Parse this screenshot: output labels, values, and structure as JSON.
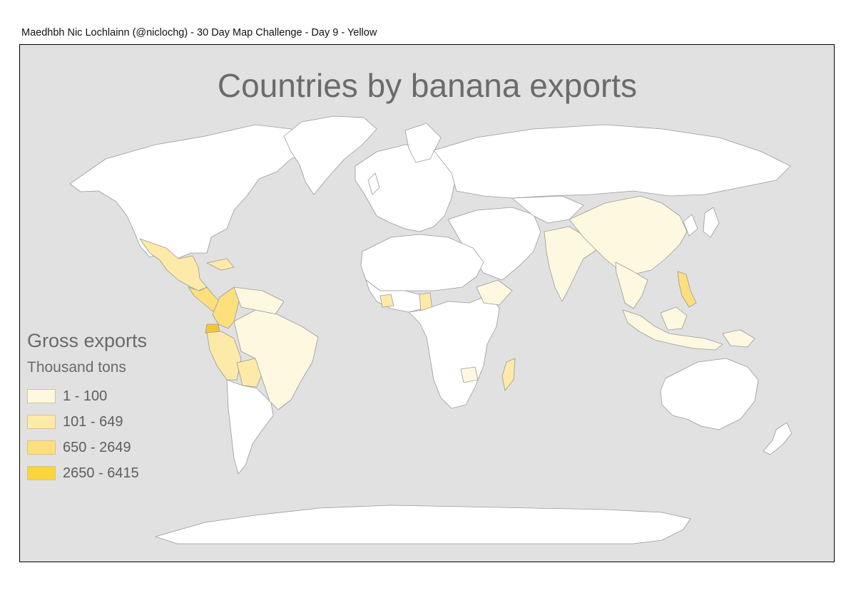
{
  "credit": "Maedhbh Nic Lochlainn (@niclochg) - 30 Day Map Challenge - Day 9 - Yellow",
  "title": "Countries by banana exports",
  "legend": {
    "title": "Gross exports",
    "subtitle": "Thousand tons",
    "items": [
      {
        "label": "1 - 100",
        "color": "#fff8e1"
      },
      {
        "label": "101 - 649",
        "color": "#feeaa8"
      },
      {
        "label": "650 - 2649",
        "color": "#fddf7e"
      },
      {
        "label": "2650 - 6415",
        "color": "#fcd43b"
      }
    ]
  },
  "colors": {
    "ocean": "#e1e1e1",
    "land": "#ffffff",
    "border": "#9a9a9a",
    "top_tier": "#f6c53a"
  },
  "map_class_assignments": {
    "1 - 100": [
      "China",
      "India",
      "Brazil",
      "Ethiopia",
      "Zimbabwe",
      "Venezuela",
      "Guyana",
      "Suriname",
      "Thailand",
      "Laos",
      "Malaysia",
      "Indonesia",
      "Papua New Guinea",
      "Cameroon neighbours"
    ],
    "101 - 649": [
      "Mexico",
      "Honduras",
      "Nicaragua",
      "Peru",
      "Bolivia",
      "Côte d'Ivoire",
      "Cameroon",
      "Dominican Republic",
      "Madagascar"
    ],
    "650 - 2649": [
      "Colombia",
      "Costa Rica",
      "Panama",
      "Guatemala",
      "Philippines"
    ],
    "2650 - 6415": [
      "Ecuador"
    ]
  }
}
